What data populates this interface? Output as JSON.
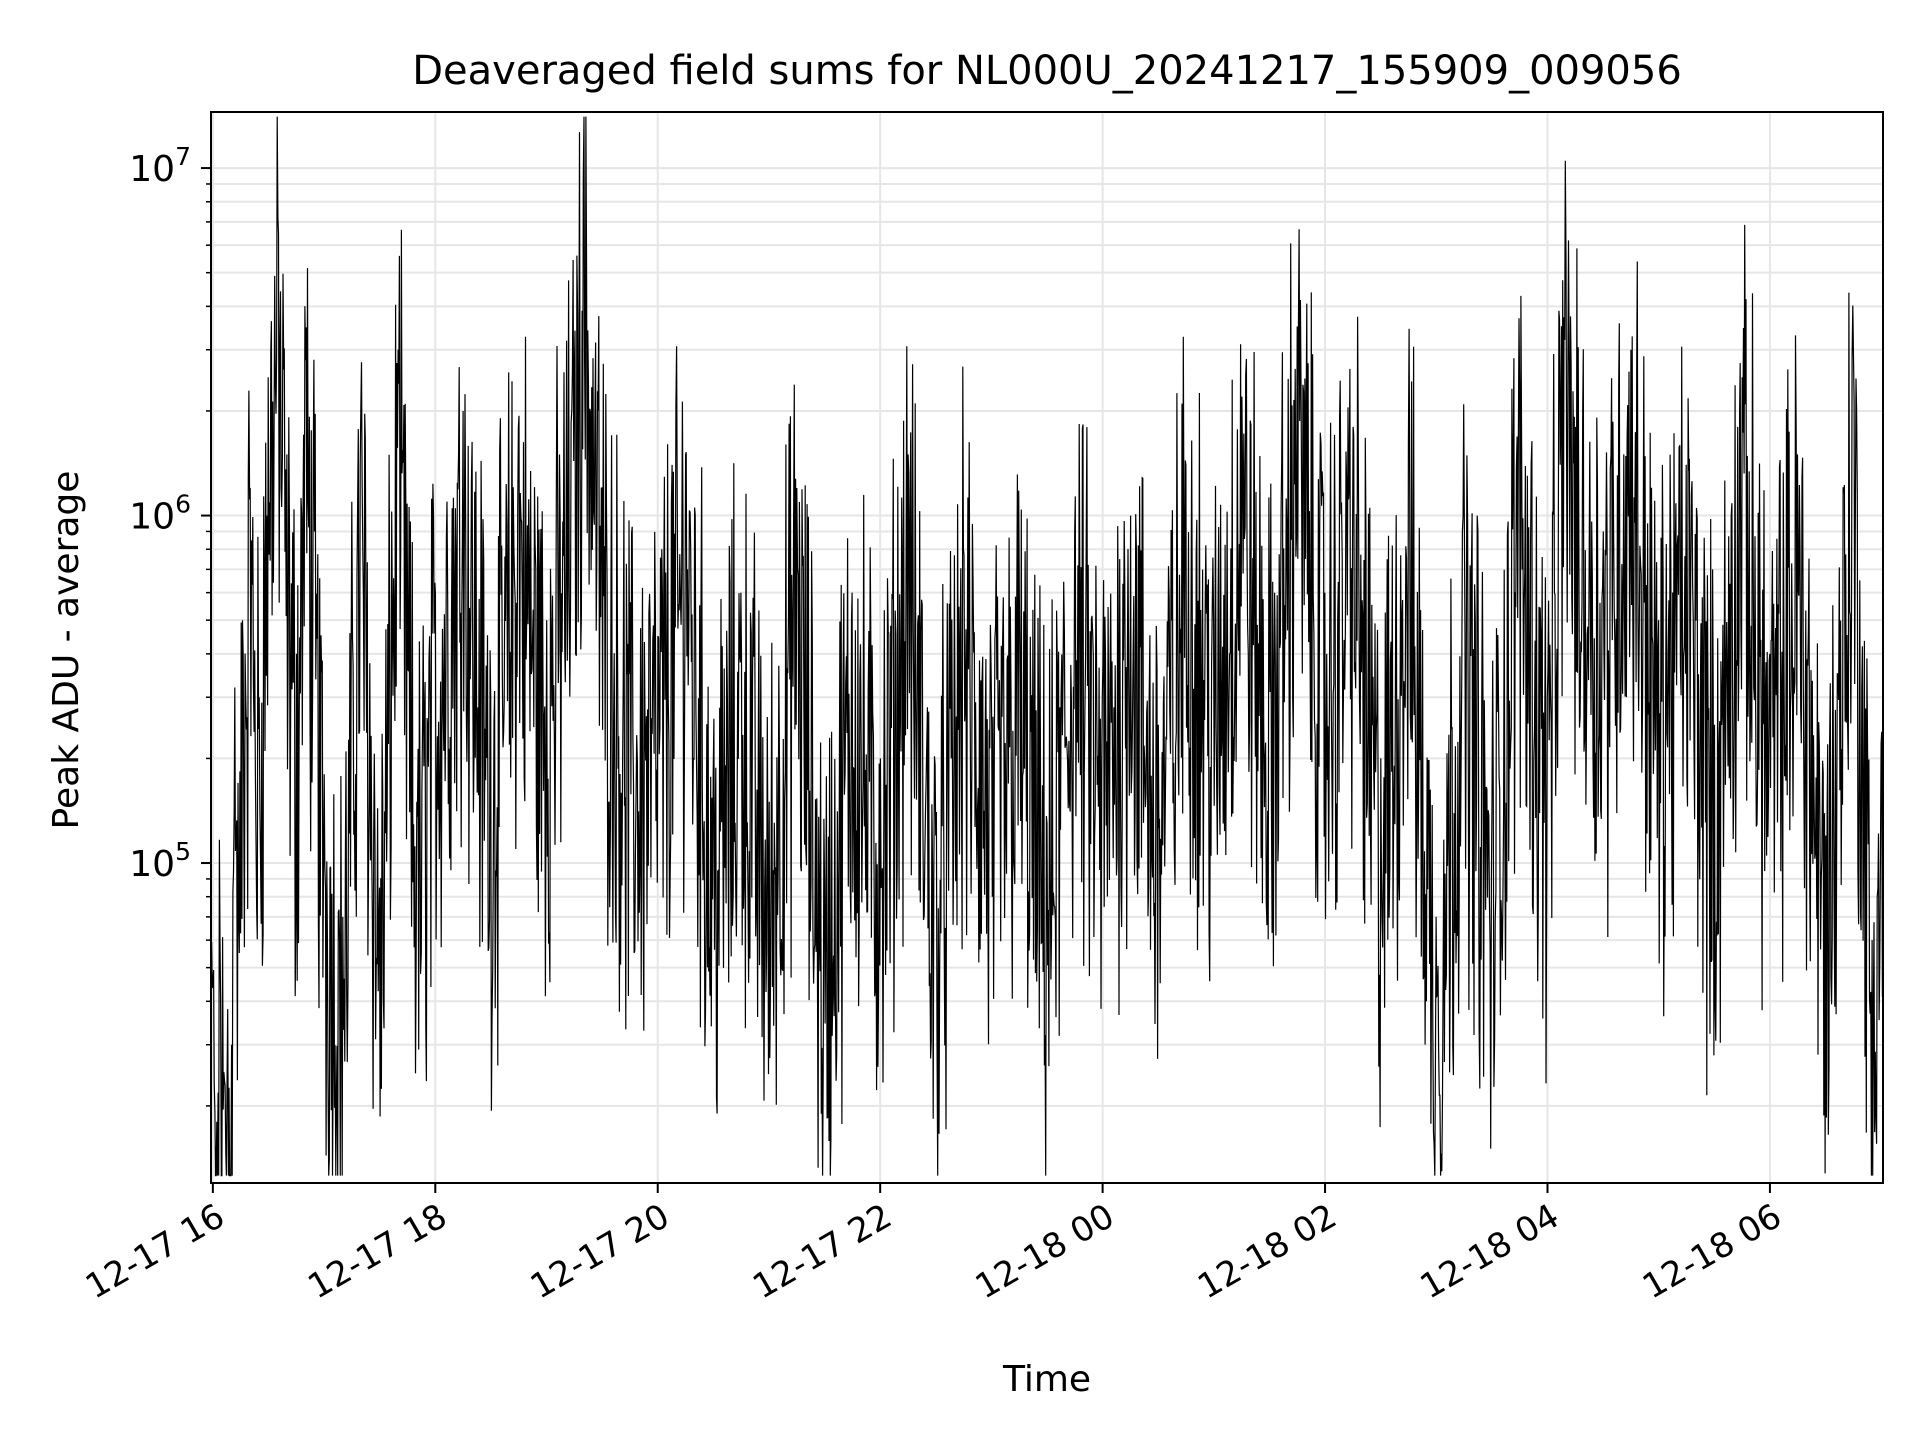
{
  "chart_data": {
    "type": "line",
    "title": "Deaveraged field sums for NL000U_20241217_155909_009056",
    "xlabel": "Time",
    "ylabel": "Peak ADU - average",
    "yscale": "log",
    "ylim": [
      12000,
      14500000
    ],
    "xlim": [
      "2024-12-17 15:59",
      "2024-12-18 07:01"
    ],
    "x_ticks": [
      {
        "value": "2024-12-17 16:00",
        "label": "12-17 16"
      },
      {
        "value": "2024-12-17 18:00",
        "label": "12-17 18"
      },
      {
        "value": "2024-12-17 20:00",
        "label": "12-17 20"
      },
      {
        "value": "2024-12-17 22:00",
        "label": "12-17 22"
      },
      {
        "value": "2024-12-18 00:00",
        "label": "12-18 00"
      },
      {
        "value": "2024-12-18 02:00",
        "label": "12-18 02"
      },
      {
        "value": "2024-12-18 04:00",
        "label": "12-18 04"
      },
      {
        "value": "2024-12-18 06:00",
        "label": "12-18 06"
      }
    ],
    "y_ticks": [
      {
        "value": 100000,
        "base": "10",
        "exp": "5"
      },
      {
        "value": 1000000,
        "base": "10",
        "exp": "6"
      },
      {
        "value": 10000000,
        "base": "10",
        "exp": "7"
      }
    ],
    "grid": true,
    "line_color": "#000000",
    "grid_color": "#e6e6e6",
    "series": [
      {
        "x": [
          "2024-12-17 16:00",
          "2024-12-17 16:02",
          "2024-12-17 16:04",
          "2024-12-17 16:06",
          "2024-12-17 16:08",
          "2024-12-17 16:10",
          "2024-12-17 16:12",
          "2024-12-17 16:14",
          "2024-12-17 16:16",
          "2024-12-17 16:20",
          "2024-12-17 16:25",
          "2024-12-17 16:30",
          "2024-12-17 16:35",
          "2024-12-17 16:40",
          "2024-12-17 16:45",
          "2024-12-17 16:50",
          "2024-12-17 16:55",
          "2024-12-17 17:00",
          "2024-12-17 17:10",
          "2024-12-17 17:20",
          "2024-12-17 17:30",
          "2024-12-17 17:40",
          "2024-12-17 17:50",
          "2024-12-17 18:00",
          "2024-12-17 18:15",
          "2024-12-17 18:30",
          "2024-12-17 18:45",
          "2024-12-17 19:00",
          "2024-12-17 19:15",
          "2024-12-17 19:20",
          "2024-12-17 19:30",
          "2024-12-17 19:45",
          "2024-12-17 20:00",
          "2024-12-17 20:15",
          "2024-12-17 20:30",
          "2024-12-17 20:45",
          "2024-12-17 21:00",
          "2024-12-17 21:15",
          "2024-12-17 21:30",
          "2024-12-17 21:45",
          "2024-12-17 22:00",
          "2024-12-17 22:15",
          "2024-12-17 22:30",
          "2024-12-17 22:45",
          "2024-12-17 23:00",
          "2024-12-17 23:15",
          "2024-12-17 23:30",
          "2024-12-17 23:45",
          "2024-12-18 00:00",
          "2024-12-18 00:15",
          "2024-12-18 00:30",
          "2024-12-18 00:45",
          "2024-12-18 01:00",
          "2024-12-18 01:15",
          "2024-12-18 01:30",
          "2024-12-18 01:45",
          "2024-12-18 02:00",
          "2024-12-18 02:15",
          "2024-12-18 02:30",
          "2024-12-18 02:45",
          "2024-12-18 03:00",
          "2024-12-18 03:15",
          "2024-12-18 03:30",
          "2024-12-18 03:45",
          "2024-12-18 04:00",
          "2024-12-18 04:10",
          "2024-12-18 04:15",
          "2024-12-18 04:30",
          "2024-12-18 04:45",
          "2024-12-18 05:00",
          "2024-12-18 05:15",
          "2024-12-18 05:30",
          "2024-12-18 05:45",
          "2024-12-18 06:00",
          "2024-12-18 06:15",
          "2024-12-18 06:30",
          "2024-12-18 06:45",
          "2024-12-18 06:55",
          "2024-12-18 07:00"
        ],
        "y": [
          45000,
          18000,
          60000,
          25000,
          38000,
          30000,
          320000,
          70000,
          500000,
          1200000,
          300000,
          2500000,
          7200000,
          1500000,
          400000,
          2800000,
          900000,
          180000,
          70000,
          2000000,
          85000,
          3000000,
          150000,
          600000,
          2000000,
          300000,
          1800000,
          500000,
          2500000,
          9500000,
          1200000,
          350000,
          450000,
          1500000,
          180000,
          600000,
          150000,
          1200000,
          90000,
          600000,
          200000,
          1500000,
          120000,
          800000,
          250000,
          600000,
          130000,
          900000,
          300000,
          1000000,
          250000,
          1400000,
          500000,
          2200000,
          400000,
          3500000,
          600000,
          1800000,
          200000,
          1600000,
          70000,
          900000,
          150000,
          2200000,
          300000,
          5500000,
          1800000,
          900000,
          3000000,
          500000,
          1400000,
          250000,
          2500000,
          400000,
          1500000,
          120000,
          3000000,
          60000,
          220000
        ]
      }
    ]
  }
}
